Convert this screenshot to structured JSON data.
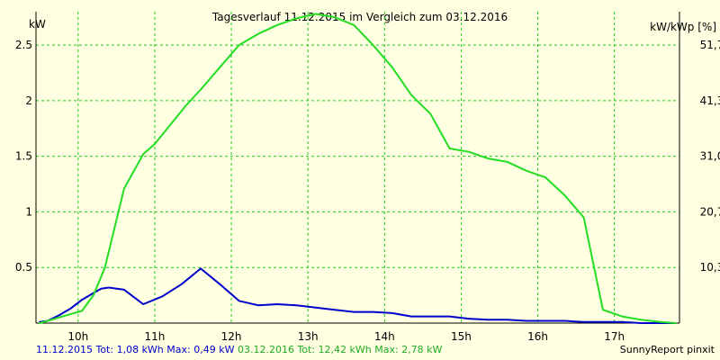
{
  "colors": {
    "background": "#ffffe1",
    "grid": "#22cc22",
    "series_2015": "#0000cc",
    "series_2016": "#22dd22"
  },
  "chart_data": {
    "type": "line",
    "title": "Tagesverlauf 11.12.2015 im Vergleich zum 03.12.2016",
    "ylabel": "kW",
    "ylabel_right": "kW/kWp [%]",
    "xlim": [
      9.45,
      17.85
    ],
    "ylim": [
      0,
      2.8
    ],
    "x_ticks": [
      10,
      11,
      12,
      13,
      14,
      15,
      16,
      17
    ],
    "x_tick_labels": [
      "10h",
      "11h",
      "12h",
      "13h",
      "14h",
      "15h",
      "16h",
      "17h"
    ],
    "y_ticks": [
      0.5,
      1,
      1.5,
      2,
      2.5
    ],
    "y_tick_labels": [
      "0.5",
      "1",
      "1.5",
      "2",
      "2.5"
    ],
    "y_right_ticks": [
      0.5,
      1,
      1.5,
      2,
      2.5
    ],
    "y_right_tick_labels": [
      "10,3",
      "20,7",
      "31,0",
      "41,3",
      "51,7"
    ],
    "grid": true,
    "series": [
      {
        "name": "11.12.2015",
        "color": "#0000cc",
        "x": [
          9.5,
          9.6,
          9.75,
          9.9,
          10.05,
          10.2,
          10.3,
          10.4,
          10.6,
          10.85,
          11.1,
          11.35,
          11.6,
          11.85,
          12.1,
          12.35,
          12.6,
          12.85,
          13.1,
          13.35,
          13.6,
          13.85,
          14.1,
          14.35,
          14.6,
          14.85,
          15.1,
          15.35,
          15.6,
          15.85,
          16.1,
          16.35,
          16.6,
          16.85,
          17.1,
          17.35,
          17.6,
          17.8
        ],
        "values": [
          0.01,
          0.02,
          0.07,
          0.13,
          0.21,
          0.27,
          0.31,
          0.32,
          0.3,
          0.17,
          0.24,
          0.35,
          0.49,
          0.35,
          0.2,
          0.16,
          0.17,
          0.16,
          0.14,
          0.12,
          0.1,
          0.1,
          0.09,
          0.06,
          0.06,
          0.06,
          0.04,
          0.03,
          0.03,
          0.02,
          0.02,
          0.02,
          0.01,
          0.01,
          0.01,
          0.0,
          0.0,
          0.0
        ]
      },
      {
        "name": "03.12.2016",
        "color": "#22dd22",
        "x": [
          9.5,
          9.6,
          9.75,
          9.9,
          10.05,
          10.2,
          10.35,
          10.6,
          10.85,
          11.0,
          11.2,
          11.4,
          11.6,
          11.85,
          12.1,
          12.35,
          12.6,
          12.85,
          13.1,
          13.35,
          13.6,
          13.85,
          14.1,
          14.35,
          14.6,
          14.85,
          15.1,
          15.35,
          15.6,
          15.85,
          16.1,
          16.35,
          16.6,
          16.85,
          17.1,
          17.35,
          17.6,
          17.8
        ],
        "values": [
          0.0,
          0.02,
          0.05,
          0.08,
          0.11,
          0.25,
          0.5,
          1.21,
          1.52,
          1.61,
          1.78,
          1.95,
          2.1,
          2.3,
          2.5,
          2.6,
          2.68,
          2.74,
          2.78,
          2.75,
          2.68,
          2.5,
          2.3,
          2.05,
          1.88,
          1.57,
          1.54,
          1.48,
          1.45,
          1.37,
          1.31,
          1.15,
          0.95,
          0.12,
          0.06,
          0.03,
          0.01,
          0.0
        ]
      }
    ]
  },
  "footer": {
    "left_2015": "11.12.2015 Tot: 1,08 kWh Max: 0,49 kW",
    "left_2016": "03.12.2016 Tot: 12,42 kWh Max: 2,78 kW",
    "right": "SunnyReport pinxit"
  }
}
